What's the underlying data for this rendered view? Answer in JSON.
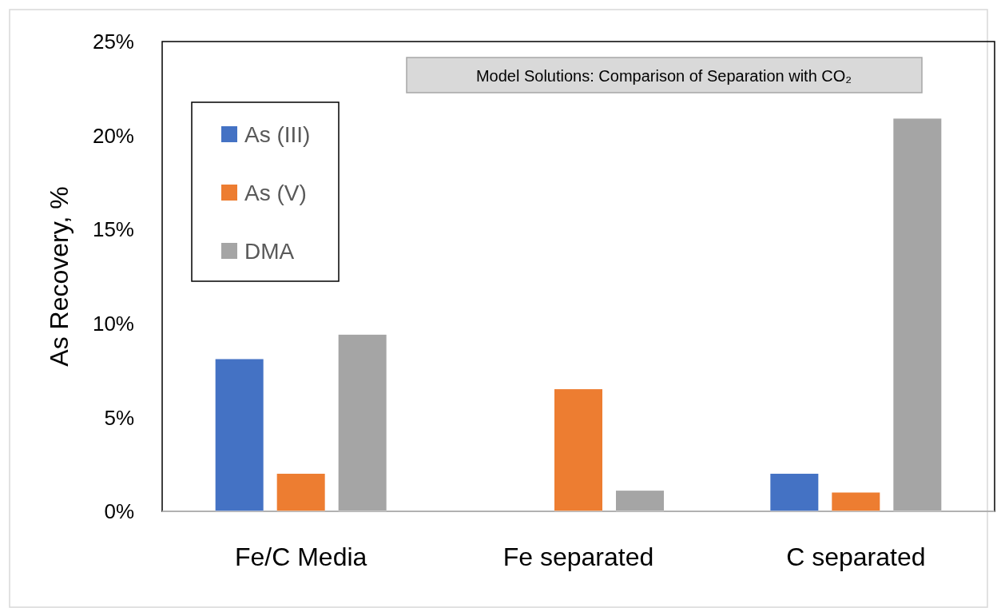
{
  "chart_data": {
    "type": "bar",
    "title": "Model Solutions: Comparison of Separation with CO₂",
    "ylabel": "As Recovery, %",
    "categories": [
      "Fe/C Media",
      "Fe separated",
      "C separated"
    ],
    "series": [
      {
        "name": "As (III)",
        "color": "#4472c4",
        "values": [
          8.1,
          0,
          2.0
        ]
      },
      {
        "name": "As (V)",
        "color": "#ed7d31",
        "values": [
          2.0,
          6.5,
          1.0
        ]
      },
      {
        "name": "DMA",
        "color": "#a5a5a5",
        "values": [
          9.4,
          1.1,
          20.9
        ]
      }
    ],
    "ylim": [
      0,
      25
    ],
    "yticks": [
      {
        "value": 0,
        "label": "0%"
      },
      {
        "value": 5,
        "label": "5%"
      },
      {
        "value": 10,
        "label": "10%"
      },
      {
        "value": 15,
        "label": "15%"
      },
      {
        "value": 20,
        "label": "20%"
      },
      {
        "value": 25,
        "label": "25%"
      }
    ],
    "legend": "top left"
  }
}
